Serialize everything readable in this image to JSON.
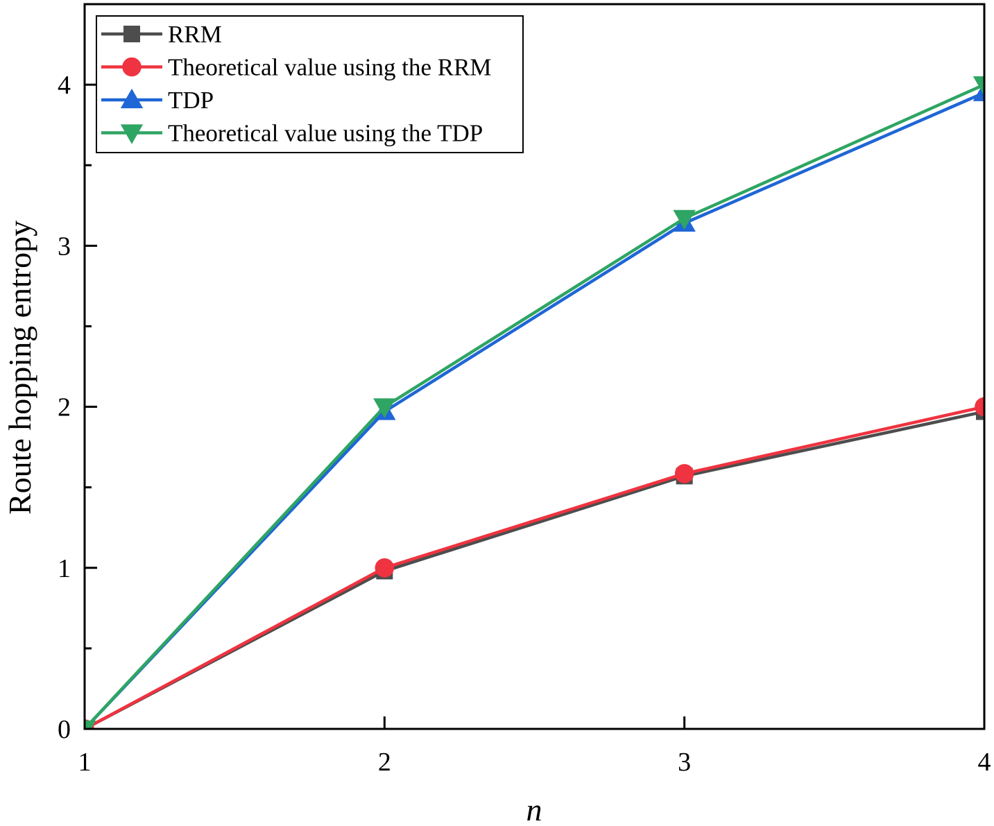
{
  "chart_data": {
    "type": "line",
    "title": "",
    "xlabel": "n",
    "ylabel": "Route hopping entropy",
    "x": [
      1,
      2,
      3,
      4
    ],
    "xticks": [
      1,
      2,
      3,
      4
    ],
    "xtick_labels": [
      "1",
      "2",
      "3",
      "4"
    ],
    "yticks": [
      0,
      1,
      2,
      3,
      4
    ],
    "ytick_labels": [
      "0",
      "1",
      "2",
      "3",
      "4"
    ],
    "xlim": [
      1,
      4
    ],
    "ylim": [
      0,
      4.5
    ],
    "grid": false,
    "legend_position": "top-left",
    "series": [
      {
        "name": "RRM",
        "color": "#4d4d4d",
        "marker": "square",
        "values": [
          0,
          0.98,
          1.57,
          1.97
        ]
      },
      {
        "name": "Theoretical value using the RRM",
        "color": "#ef3340",
        "marker": "circle",
        "values": [
          0,
          1.0,
          1.585,
          2.0
        ]
      },
      {
        "name": "TDP",
        "color": "#1f66d6",
        "marker": "triangle-up",
        "values": [
          0,
          1.97,
          3.14,
          3.95
        ]
      },
      {
        "name": "Theoretical value using the TDP",
        "color": "#2ea563",
        "marker": "triangle-down",
        "values": [
          0,
          2.0,
          3.17,
          4.0
        ]
      }
    ]
  }
}
